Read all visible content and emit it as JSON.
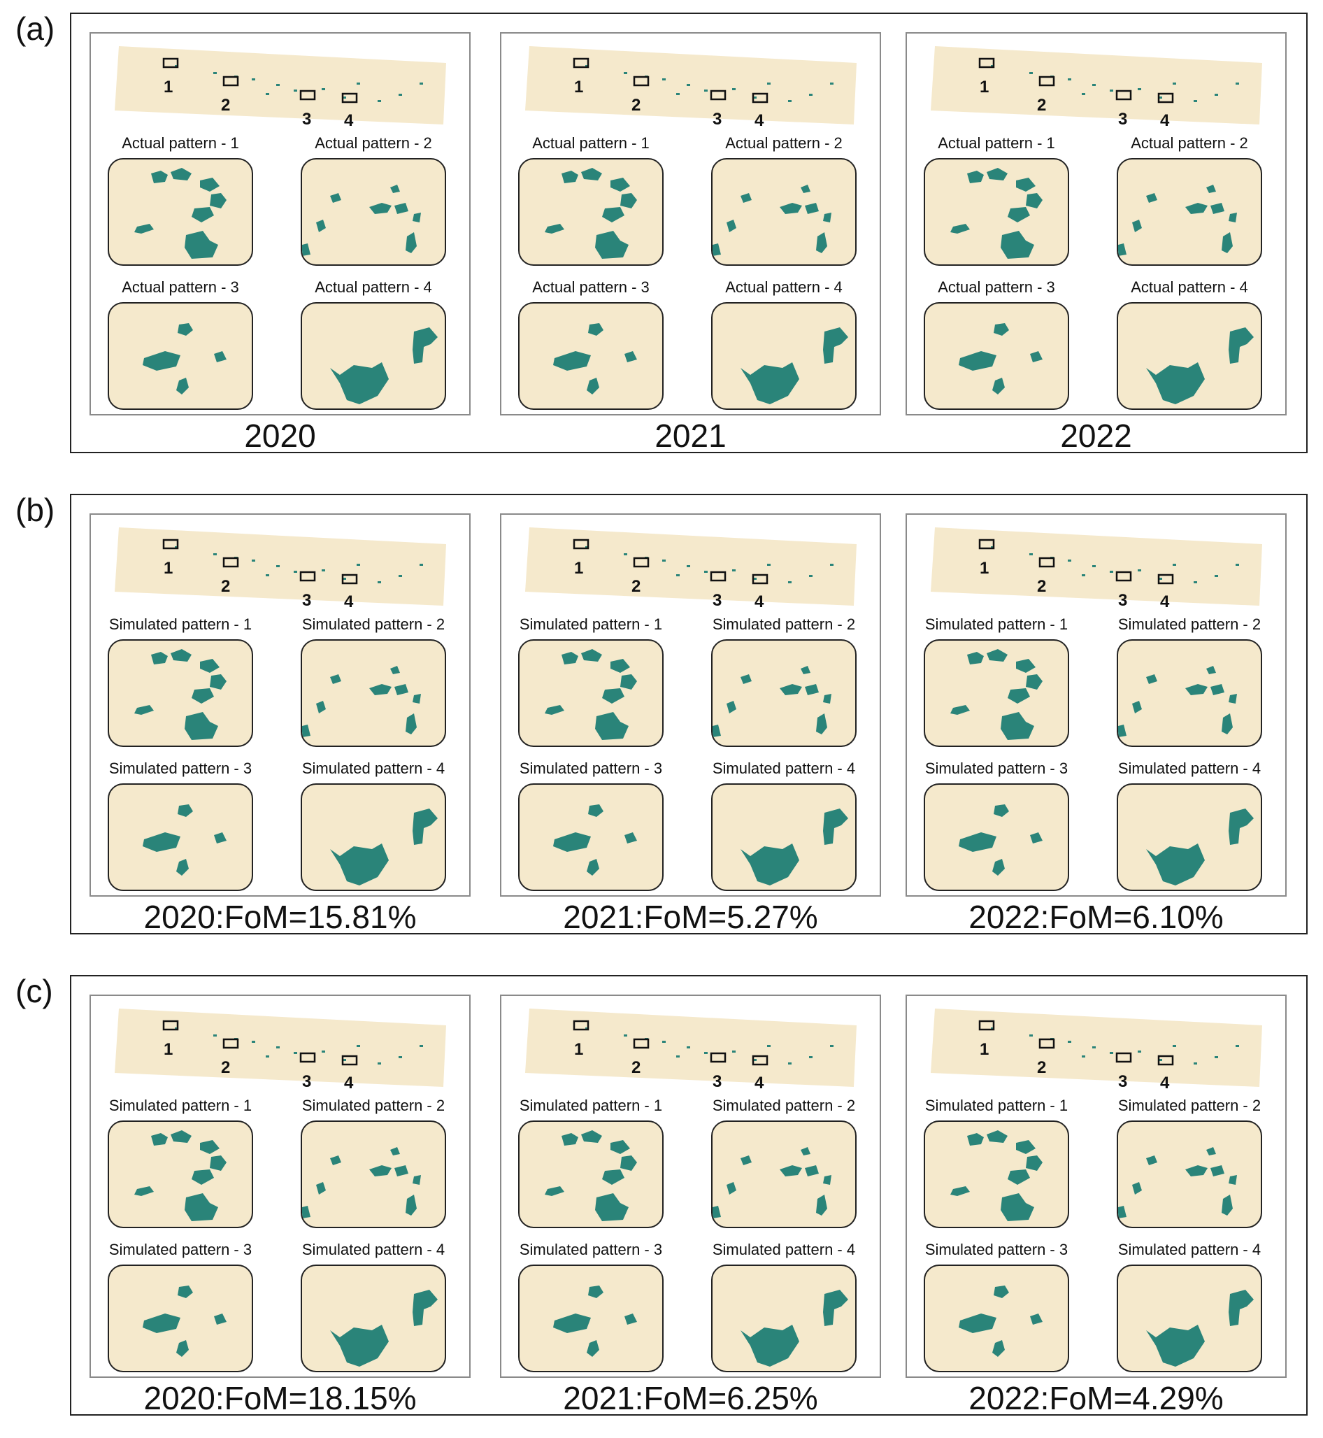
{
  "colors": {
    "background": "#f5e9cc",
    "patch": "#2a8479",
    "frame": "#222222",
    "panel_border": "#8a8a8a"
  },
  "sections": [
    {
      "id": "a",
      "label": "(a)",
      "sub_title": "Actual pattern",
      "panels": [
        {
          "caption": "2020"
        },
        {
          "caption": "2021"
        },
        {
          "caption": "2022"
        }
      ]
    },
    {
      "id": "b",
      "label": "(b)",
      "sub_title": "Simulated pattern",
      "panels": [
        {
          "caption": "2020:FoM=15.81%"
        },
        {
          "caption": "2021:FoM=5.27%"
        },
        {
          "caption": "2022:FoM=6.10%"
        }
      ]
    },
    {
      "id": "c",
      "label": "(c)",
      "sub_title": "Simulated pattern",
      "panels": [
        {
          "caption": "2020:FoM=18.15%"
        },
        {
          "caption": "2021:FoM=6.25%"
        },
        {
          "caption": "2022:FoM=4.29%"
        }
      ]
    }
  ],
  "region_numbers": [
    "1",
    "2",
    "3",
    "4"
  ]
}
